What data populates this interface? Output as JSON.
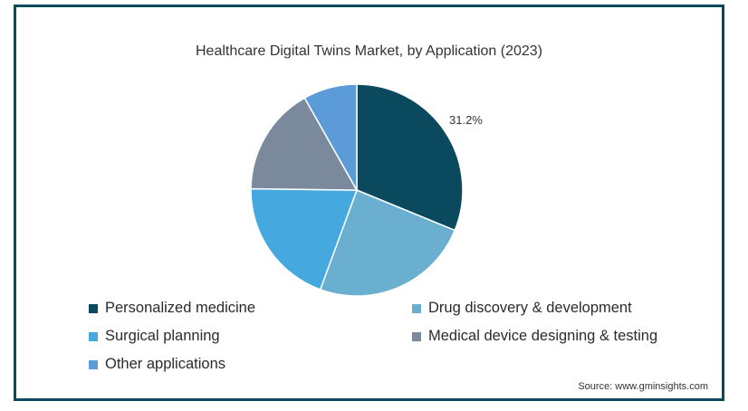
{
  "chart_data": {
    "type": "pie",
    "title": "Healthcare Digital Twins Market, by Application (2023)",
    "slices": [
      {
        "label": "Personalized medicine",
        "value": 31.2,
        "color": "#0b4a5e",
        "data_label": "31.2%"
      },
      {
        "label": "Drug discovery & development",
        "value": 24.4,
        "color": "#6bafd0"
      },
      {
        "label": "Surgical planning",
        "value": 19.6,
        "color": "#45a9df"
      },
      {
        "label": "Medical device designing & testing",
        "value": 16.6,
        "color": "#7a8a9c"
      },
      {
        "label": "Other applications",
        "value": 8.2,
        "color": "#5a9bd8"
      }
    ],
    "legend_position": "bottom"
  },
  "source": "Source: www.gminsights.com"
}
